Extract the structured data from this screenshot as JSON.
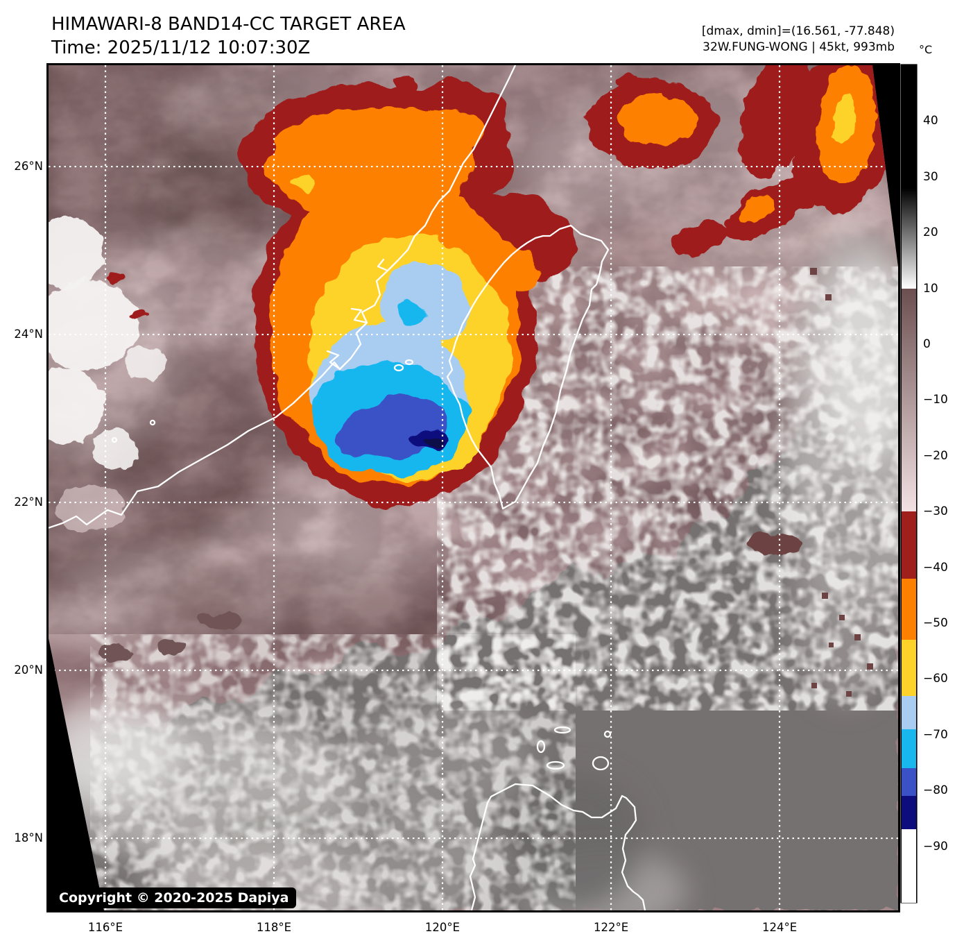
{
  "header": {
    "title": "HIMAWARI-8 BAND14-CC TARGET AREA",
    "time_line": "Time: 2025/11/12 10:07:30Z",
    "dmax_dmin_line": "[dmax, dmin]=(16.561, -77.848)",
    "storm_line": "32W.FUNG-WONG | 45kt, 993mb"
  },
  "storm": {
    "id": "32W",
    "name": "FUNG-WONG",
    "intensity_kt": "45kt",
    "pressure": "993mb",
    "dmax": "16.561",
    "dmin": "-77.848"
  },
  "copyright": "Copyright © 2020-2025 Dapiya",
  "colorbar": {
    "unit": "°C",
    "top_value": 50,
    "bottom_value": -100,
    "ticks": [
      {
        "value": 40,
        "label": "40"
      },
      {
        "value": 30,
        "label": "30"
      },
      {
        "value": 20,
        "label": "20"
      },
      {
        "value": 10,
        "label": "10"
      },
      {
        "value": 0,
        "label": "0"
      },
      {
        "value": -10,
        "label": "−10"
      },
      {
        "value": -20,
        "label": "−20"
      },
      {
        "value": -30,
        "label": "−30"
      },
      {
        "value": -40,
        "label": "−40"
      },
      {
        "value": -50,
        "label": "−50"
      },
      {
        "value": -60,
        "label": "−60"
      },
      {
        "value": -70,
        "label": "−70"
      },
      {
        "value": -80,
        "label": "−80"
      },
      {
        "value": -90,
        "label": "−90"
      }
    ],
    "segments": [
      {
        "from": 50,
        "to": 28,
        "color": "#000000"
      },
      {
        "from": 28,
        "to": 10,
        "gradient": [
          "#000000",
          "#ffffff"
        ]
      },
      {
        "from": 10,
        "to": -30,
        "gradient": [
          "#6b4f50",
          "#f3e2e4"
        ]
      },
      {
        "from": -30,
        "to": -42,
        "color": "#9e1f1b"
      },
      {
        "from": -42,
        "to": -53,
        "color": "#fd8000"
      },
      {
        "from": -53,
        "to": -63,
        "color": "#fdd32a"
      },
      {
        "from": -63,
        "to": -69,
        "color": "#a8cdf1"
      },
      {
        "from": -69,
        "to": -76,
        "color": "#18b7ee"
      },
      {
        "from": -76,
        "to": -81,
        "color": "#3b51c6"
      },
      {
        "from": -81,
        "to": -87,
        "color": "#0d0d7e"
      },
      {
        "from": -87,
        "to": -100,
        "color": "#ffffff"
      }
    ]
  },
  "axes": {
    "lon_min": 115.325,
    "lon_max": 125.407,
    "lat_min": 17.141,
    "lat_max": 27.207,
    "x_ticks": [
      {
        "label": "116°E",
        "lon": 116
      },
      {
        "label": "118°E",
        "lon": 118
      },
      {
        "label": "120°E",
        "lon": 120
      },
      {
        "label": "122°E",
        "lon": 122
      },
      {
        "label": "124°E",
        "lon": 124
      }
    ],
    "y_ticks": [
      {
        "label": "26°N",
        "lat": 26
      },
      {
        "label": "24°N",
        "lat": 24
      },
      {
        "label": "22°N",
        "lat": 22
      },
      {
        "label": "20°N",
        "lat": 20
      },
      {
        "label": "18°N",
        "lat": 18
      }
    ]
  },
  "palette": {
    "black": "#000000",
    "base": "#8b6e71",
    "mauve_dark": "#6b5052",
    "mauve_dark2": "#715557",
    "mauve": "#93767a",
    "mauve_soft": "#a58789",
    "pink": "#bda5a7",
    "pink_light": "#cdb5b7",
    "pink_pale": "#e3d0d2",
    "pink_streak": "#d8c2c4",
    "white_cloud": "#f4f2f1",
    "overlay_dark": "#503a3c",
    "gray_dark": "#767171",
    "gray_mid": "#9b9796",
    "gray_light": "#b9b5b4",
    "gray_bright": "#dedbda",
    "gray_luzon": "#6a6666",
    "red": "#9e1f1b",
    "red_brown": "#6d4343",
    "orange": "#fd8000",
    "yellow": "#fdd32a",
    "blue_light": "#a8cdf1",
    "cyan": "#18b7ee",
    "blue_royal": "#3b51c6",
    "navy": "#0d0d7e",
    "navy_dark": "#070747",
    "coast": "#ffffff",
    "grid": "#ffffff"
  }
}
